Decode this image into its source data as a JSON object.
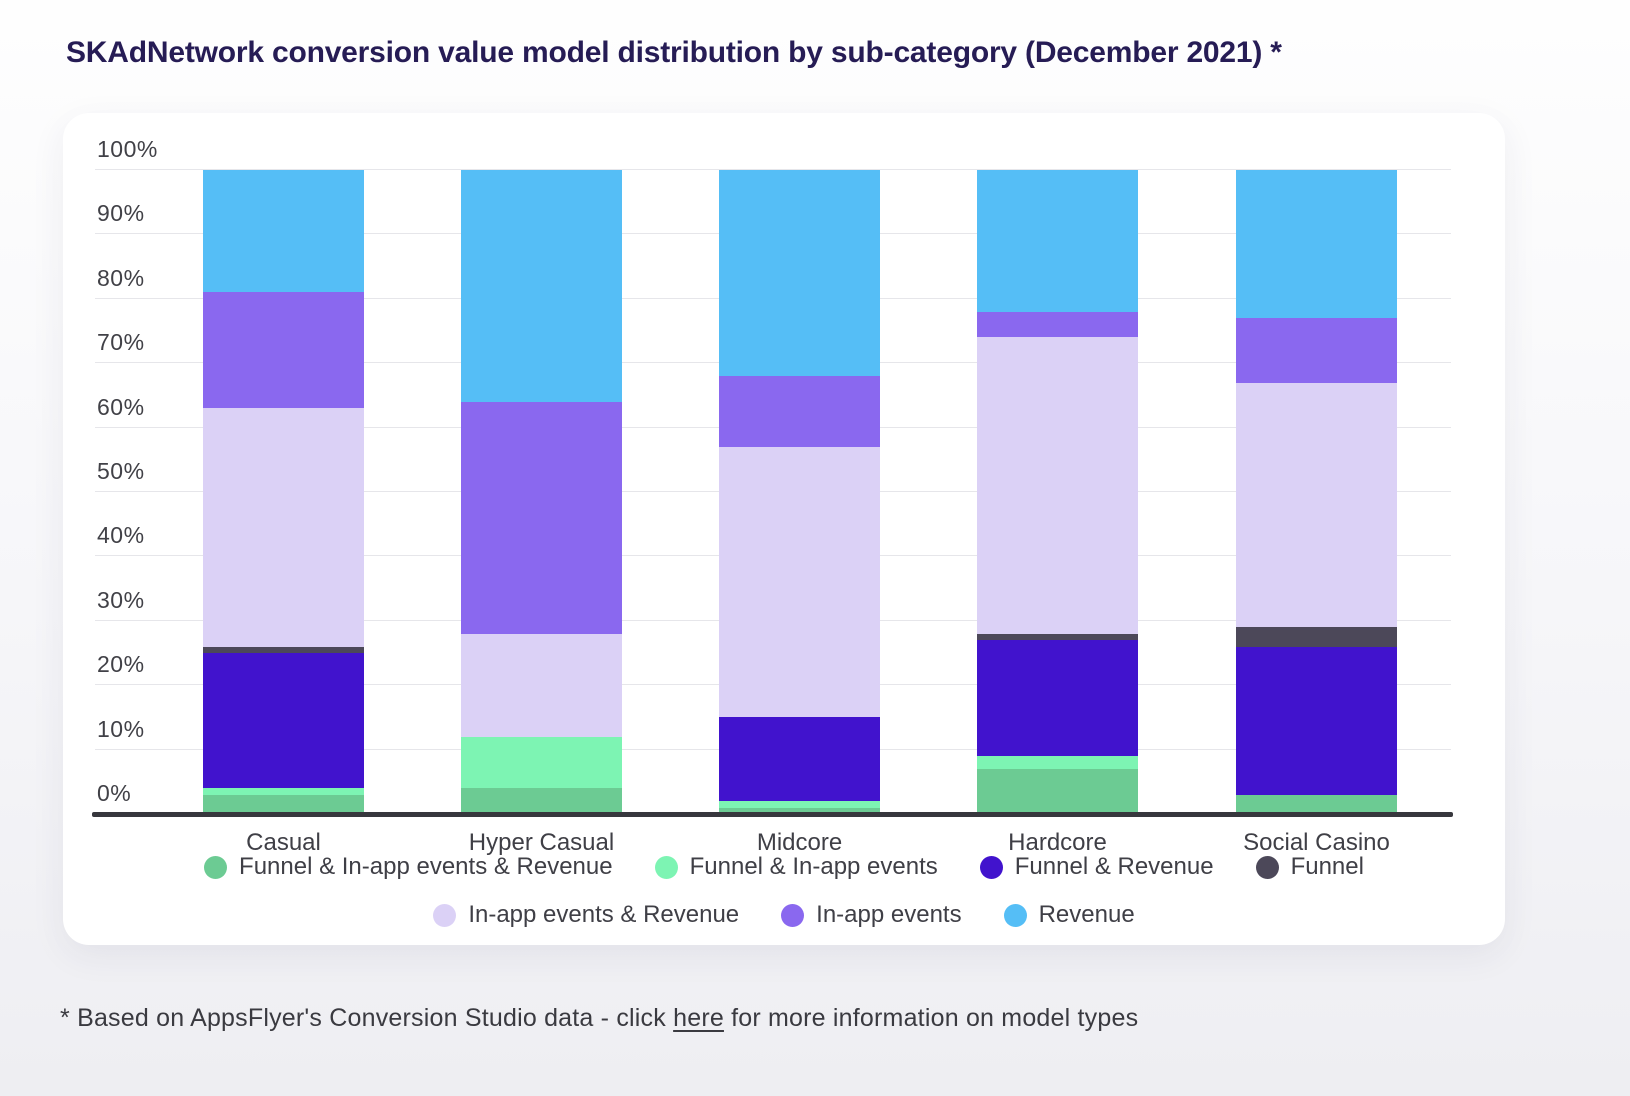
{
  "title": "SKAdNetwork conversion value model distribution by sub-category (December 2021) *",
  "footer": {
    "prefix": "* Based on AppsFlyer's Conversion Studio data - click ",
    "link_text": "here",
    "suffix": " for more information on model types"
  },
  "colors": {
    "title_text": "#261c55",
    "body_text": "#3f3f46",
    "axis": "#37373d",
    "gridline": "#e6e6ea",
    "card_bg": "#ffffff"
  },
  "chart_data": {
    "type": "bar",
    "stacked": true,
    "title": "SKAdNetwork conversion value model distribution by sub-category (December 2021) *",
    "xlabel": "",
    "ylabel": "",
    "ylim": [
      0,
      100
    ],
    "grid": true,
    "legend_position": "bottom",
    "y_ticks": [
      "0%",
      "10%",
      "20%",
      "30%",
      "40%",
      "50%",
      "60%",
      "70%",
      "80%",
      "90%",
      "100%"
    ],
    "categories": [
      "Casual",
      "Hyper Casual",
      "Midcore",
      "Hardcore",
      "Social Casino"
    ],
    "series": [
      {
        "name": "Funnel & In-app events & Revenue",
        "color": "#6ccb93",
        "values": [
          3,
          4,
          1,
          7,
          3
        ]
      },
      {
        "name": "Funnel & In-app events",
        "color": "#7df4b3",
        "values": [
          1,
          8,
          1,
          2,
          0
        ]
      },
      {
        "name": "Funnel & Revenue",
        "color": "#4113cd",
        "values": [
          21,
          0,
          13,
          18,
          23
        ]
      },
      {
        "name": "Funnel",
        "color": "#4c4859",
        "values": [
          1,
          0,
          0,
          1,
          3
        ]
      },
      {
        "name": "In-app events & Revenue",
        "color": "#dbd1f6",
        "values": [
          37,
          16,
          42,
          46,
          38
        ]
      },
      {
        "name": "In-app events",
        "color": "#8a68ef",
        "values": [
          18,
          36,
          11,
          4,
          10
        ]
      },
      {
        "name": "Revenue",
        "color": "#55bef6",
        "values": [
          19,
          36,
          32,
          22,
          23
        ]
      }
    ],
    "legend_rows": [
      [
        0,
        1,
        2,
        3
      ],
      [
        4,
        5,
        6
      ]
    ]
  }
}
